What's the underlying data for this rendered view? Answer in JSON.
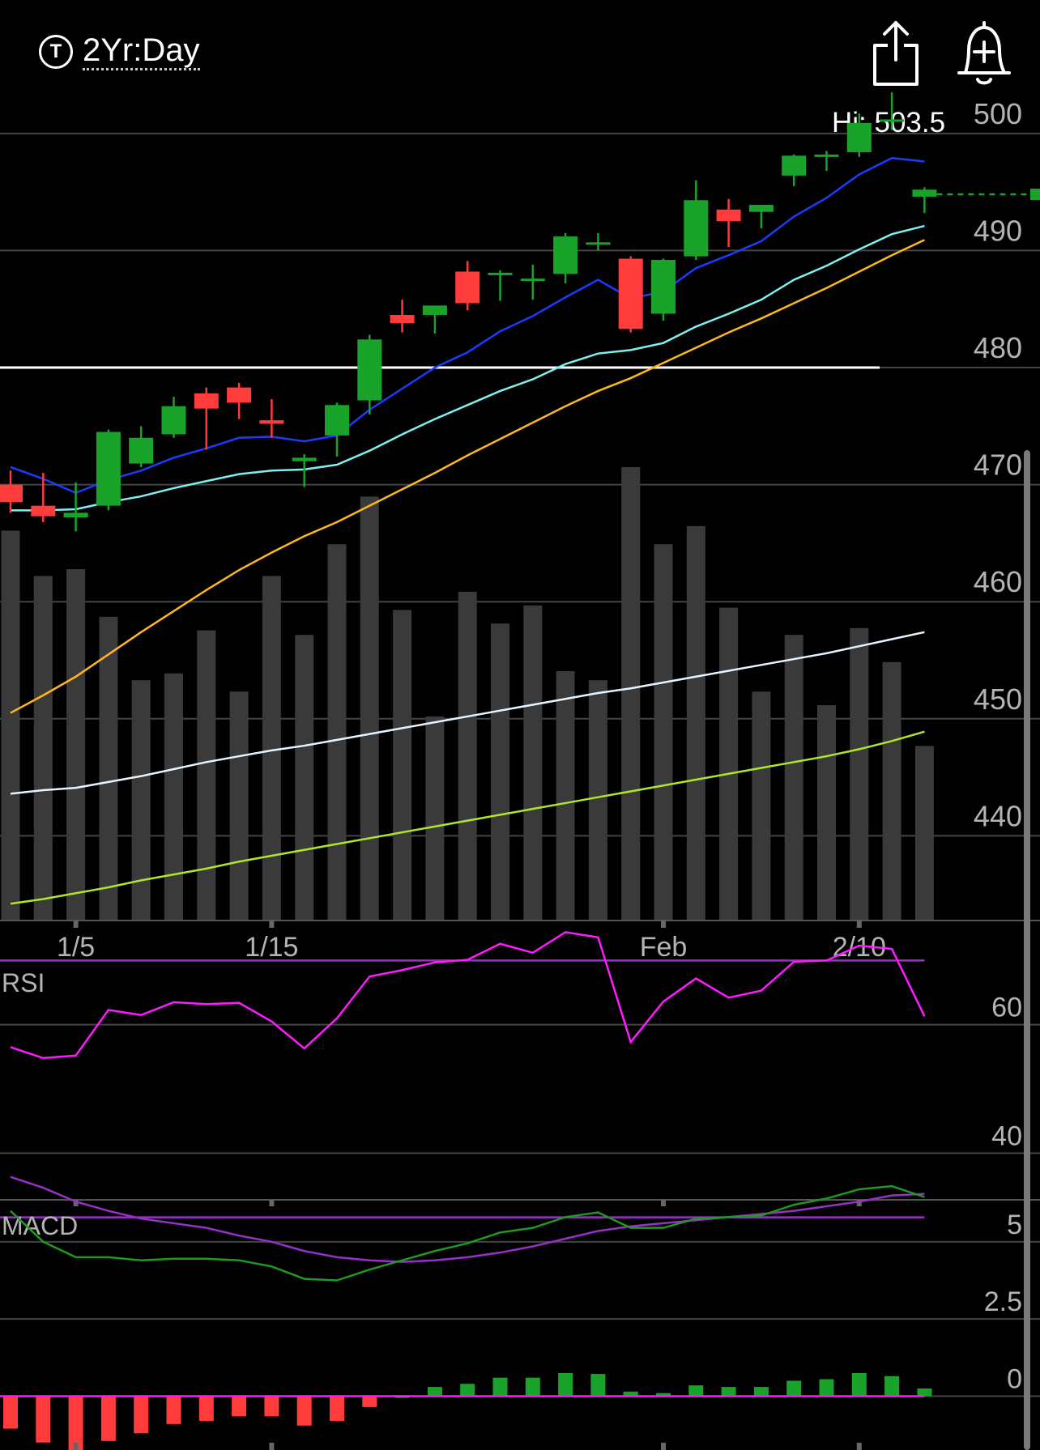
{
  "header": {
    "period_icon_text": "T",
    "period_label": "2Yr:Day",
    "hi_label": "Hi: 503.5",
    "share_icon": "share-icon",
    "alert_icon": "bell-plus-icon"
  },
  "colors": {
    "up": "#1aa32a",
    "down": "#ff3b3b",
    "volume": "#3a3a3a",
    "grid": "#444444",
    "axis_text": "#b4b4b4",
    "ma5": "#1a3cff",
    "ma10": "#7ff0f0",
    "ma20": "#ffb81c",
    "ma50": "#e6f4ff",
    "ma100": "#aee62a",
    "rsi": "#ff1aff",
    "rsi_band": "#9a30c8",
    "macd": "#1e9a1e",
    "macd_signal": "#9a30c8",
    "hist_zero": "#ff1aff"
  },
  "chart_data": [
    {
      "type": "candlestick",
      "panel": "price",
      "ylim": [
        430,
        504
      ],
      "yticks": [
        500,
        490,
        480,
        470,
        460,
        450,
        440
      ],
      "xticks": [
        {
          "label": "1/5",
          "index": 2
        },
        {
          "label": "1/15",
          "index": 8
        },
        {
          "label": "Feb",
          "index": 20
        },
        {
          "label": "2/10",
          "index": 26
        }
      ],
      "hi": 503.5,
      "reference_line": 480,
      "last_price_line": 494.8,
      "candles": [
        {
          "o": 470,
          "h": 471.2,
          "l": 467.6,
          "c": 468.5
        },
        {
          "o": 468.2,
          "h": 471,
          "l": 466.8,
          "c": 467.3
        },
        {
          "o": 467.2,
          "h": 470.2,
          "l": 466,
          "c": 467.6
        },
        {
          "o": 468.2,
          "h": 474.7,
          "l": 467.8,
          "c": 474.5
        },
        {
          "o": 471.8,
          "h": 475,
          "l": 471.5,
          "c": 474
        },
        {
          "o": 474.3,
          "h": 477.5,
          "l": 474,
          "c": 476.7
        },
        {
          "o": 477.8,
          "h": 478.3,
          "l": 473,
          "c": 476.5
        },
        {
          "o": 478.3,
          "h": 478.7,
          "l": 475.6,
          "c": 477
        },
        {
          "o": 475.5,
          "h": 477.3,
          "l": 474,
          "c": 475.2
        },
        {
          "o": 472,
          "h": 472.6,
          "l": 469.8,
          "c": 472.3
        },
        {
          "o": 474.2,
          "h": 477,
          "l": 472.4,
          "c": 476.8
        },
        {
          "o": 477.2,
          "h": 482.8,
          "l": 476,
          "c": 482.4
        },
        {
          "o": 484.5,
          "h": 485.8,
          "l": 483,
          "c": 483.8
        },
        {
          "o": 484.5,
          "h": 485.3,
          "l": 482.9,
          "c": 485.3
        },
        {
          "o": 488.2,
          "h": 489.1,
          "l": 484.9,
          "c": 485.5
        },
        {
          "o": 487.9,
          "h": 488.3,
          "l": 485.7,
          "c": 488.1
        },
        {
          "o": 487.6,
          "h": 488.8,
          "l": 485.8,
          "c": 487.6
        },
        {
          "o": 488,
          "h": 491.5,
          "l": 487.2,
          "c": 491.2
        },
        {
          "o": 490.7,
          "h": 491.5,
          "l": 490,
          "c": 490.7
        },
        {
          "o": 489.3,
          "h": 489.5,
          "l": 483,
          "c": 483.3
        },
        {
          "o": 484.6,
          "h": 489.3,
          "l": 484,
          "c": 489.2
        },
        {
          "o": 489.5,
          "h": 496,
          "l": 489.2,
          "c": 494.3
        },
        {
          "o": 493.5,
          "h": 494.4,
          "l": 490.3,
          "c": 492.5
        },
        {
          "o": 493.3,
          "h": 493.9,
          "l": 491.9,
          "c": 493.9
        },
        {
          "o": 496.4,
          "h": 498.2,
          "l": 495.5,
          "c": 498.1
        },
        {
          "o": 498,
          "h": 498.5,
          "l": 496.8,
          "c": 498.2
        },
        {
          "o": 498.4,
          "h": 501.7,
          "l": 498,
          "c": 500.9
        },
        {
          "o": 501.2,
          "h": 503.5,
          "l": 500.3,
          "c": 501.2
        },
        {
          "o": 494.6,
          "h": 495.4,
          "l": 493.2,
          "c": 495.2
        }
      ],
      "volume": [
        0.86,
        0.76,
        0.775,
        0.67,
        0.53,
        0.545,
        0.64,
        0.505,
        0.76,
        0.63,
        0.83,
        0.935,
        0.685,
        0.45,
        0.725,
        0.655,
        0.695,
        0.55,
        0.53,
        1.0,
        0.83,
        0.87,
        0.69,
        0.505,
        0.63,
        0.475,
        0.645,
        0.57,
        0.385
      ],
      "moving_averages": [
        {
          "key": "ma5",
          "values": [
            471.5,
            470.5,
            469.3,
            470.4,
            471.2,
            472.3,
            473.1,
            474,
            474.1,
            473.7,
            474.2,
            476.4,
            478.2,
            480,
            481.3,
            483.1,
            484.4,
            486,
            487.5,
            485.9,
            486.5,
            488.5,
            489.6,
            490.8,
            492.9,
            494.5,
            496.5,
            497.9,
            497.6
          ]
        },
        {
          "key": "ma10",
          "values": [
            467.8,
            467.8,
            467.9,
            468.5,
            469,
            469.7,
            470.3,
            470.9,
            471.2,
            471.3,
            471.7,
            472.9,
            474.3,
            475.6,
            476.8,
            478,
            479,
            480.3,
            481.2,
            481.5,
            482.1,
            483.5,
            484.6,
            485.8,
            487.5,
            488.7,
            490.1,
            491.4,
            492.1
          ]
        },
        {
          "key": "ma20",
          "values": [
            450.5,
            452,
            453.6,
            455.5,
            457.4,
            459.2,
            461,
            462.7,
            464.2,
            465.6,
            466.8,
            468.2,
            469.6,
            471,
            472.5,
            473.9,
            475.3,
            476.7,
            478,
            479.1,
            480.4,
            481.7,
            483,
            484.2,
            485.5,
            486.8,
            488.2,
            489.6,
            490.9
          ]
        },
        {
          "key": "ma50",
          "values": [
            443.6,
            443.9,
            444.1,
            444.6,
            445.1,
            445.7,
            446.3,
            446.8,
            447.3,
            447.7,
            448.2,
            448.7,
            449.2,
            449.7,
            450.2,
            450.7,
            451.2,
            451.7,
            452.2,
            452.6,
            453.1,
            453.6,
            454.1,
            454.6,
            455.1,
            455.6,
            456.2,
            456.8,
            457.4
          ]
        },
        {
          "key": "ma100",
          "values": [
            434.2,
            434.6,
            435.1,
            435.6,
            436.2,
            436.7,
            437.2,
            437.8,
            438.3,
            438.8,
            439.3,
            439.8,
            440.3,
            440.8,
            441.3,
            441.8,
            442.3,
            442.8,
            443.3,
            443.8,
            444.3,
            444.8,
            445.3,
            445.8,
            446.3,
            446.8,
            447.4,
            448.1,
            448.9
          ]
        }
      ]
    },
    {
      "type": "line",
      "panel": "rsi",
      "title": "RSI",
      "ylim": [
        20,
        80
      ],
      "yticks": [
        60,
        40
      ],
      "bands": [
        70,
        30
      ],
      "values": [
        56.5,
        54.8,
        55.2,
        62.3,
        61.5,
        63.5,
        63.2,
        63.4,
        60.5,
        56.3,
        61,
        67.5,
        68.5,
        69.7,
        70.1,
        72.6,
        71.2,
        74.4,
        73.6,
        57.3,
        63.6,
        67.2,
        64.2,
        65.3,
        69.8,
        70,
        72.3,
        71.8,
        61.3
      ]
    },
    {
      "type": "line",
      "panel": "macd",
      "title": "MACD",
      "ylim": [
        -3,
        7.8
      ],
      "yticks": [
        5,
        2.5,
        0
      ],
      "macd": [
        6,
        5,
        4.5,
        4.5,
        4.4,
        4.45,
        4.45,
        4.4,
        4.2,
        3.8,
        3.75,
        4.1,
        4.4,
        4.7,
        4.95,
        5.3,
        5.45,
        5.8,
        5.95,
        5.45,
        5.45,
        5.75,
        5.8,
        5.85,
        6.2,
        6.4,
        6.7,
        6.8,
        6.45
      ],
      "signal": [
        7.1,
        6.75,
        6.3,
        6,
        5.75,
        5.6,
        5.45,
        5.2,
        5,
        4.7,
        4.5,
        4.4,
        4.35,
        4.4,
        4.5,
        4.65,
        4.85,
        5.1,
        5.35,
        5.5,
        5.6,
        5.7,
        5.8,
        5.9,
        6,
        6.15,
        6.3,
        6.5,
        6.55
      ],
      "histogram": [
        -1.05,
        -1.5,
        -1.8,
        -1.45,
        -1.2,
        -0.9,
        -0.8,
        -0.65,
        -0.65,
        -0.95,
        -0.8,
        -0.35,
        0,
        0.3,
        0.4,
        0.6,
        0.6,
        0.75,
        0.72,
        0.15,
        0.1,
        0.35,
        0.3,
        0.3,
        0.5,
        0.55,
        0.75,
        0.65,
        0.25
      ]
    }
  ]
}
